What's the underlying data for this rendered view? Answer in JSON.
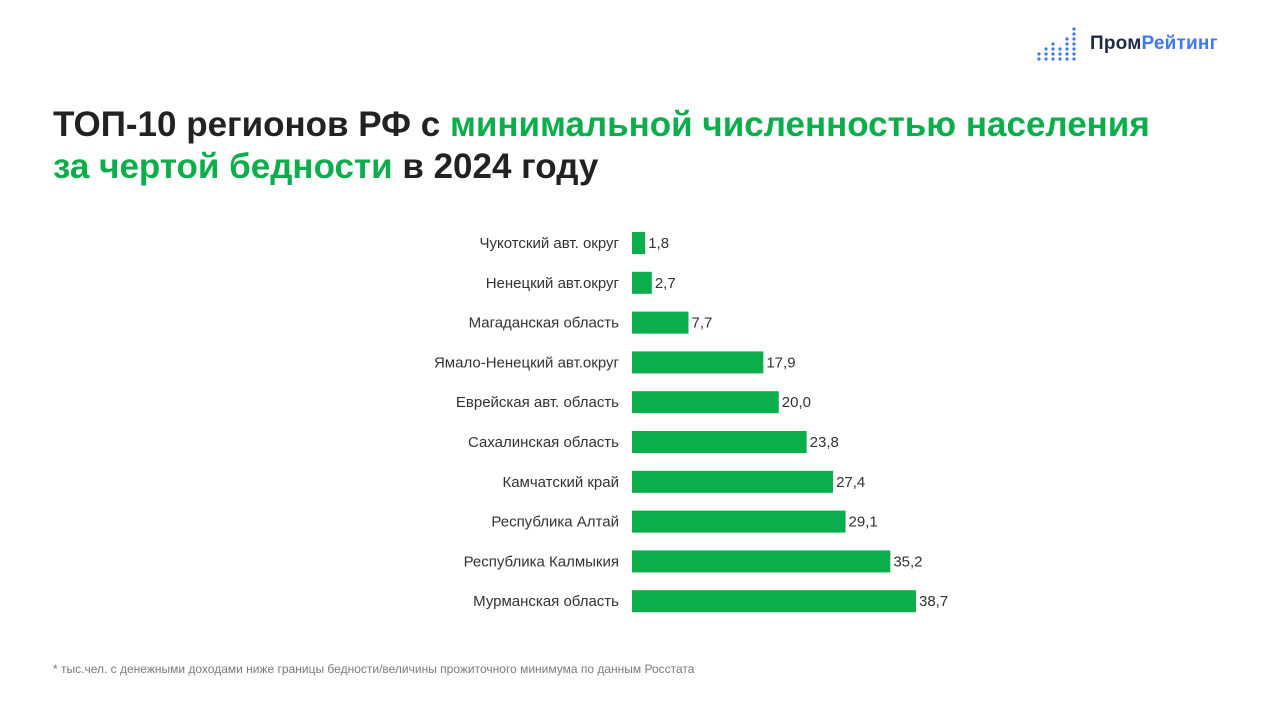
{
  "brand": {
    "name_part1": "Пром",
    "name_part2": "Рейтинг",
    "icon": "bar-dots-logo-icon",
    "color_dark": "#1f2a44",
    "color_blue": "#3f78f0"
  },
  "title": {
    "part1": "ТОП-10 регионов РФ с ",
    "highlight1": "минимальной численностью населения",
    "highlight2": "за чертой бедности",
    "part2": " в 2024 году"
  },
  "colors": {
    "accent": "#0cae4b",
    "text": "#222222",
    "bar": "#0cae4b"
  },
  "chart_data": {
    "type": "bar",
    "orientation": "horizontal",
    "categories": [
      "Чукотский авт. округ",
      "Ненецкий авт.округ",
      "Магаданская область",
      "Ямало-Ненецкий авт.округ",
      "Еврейская авт. область",
      "Сахалинская область",
      "Камчатский край",
      "Республика Алтай",
      "Республика Калмыкия",
      "Мурманская область"
    ],
    "values": [
      1.8,
      2.7,
      7.7,
      17.9,
      20.0,
      23.8,
      27.4,
      29.1,
      35.2,
      38.7
    ],
    "value_labels": [
      "1,8",
      "2,7",
      "7,7",
      "17,9",
      "20,0",
      "23,8",
      "27,4",
      "29,1",
      "35,2",
      "38,7"
    ],
    "xlim": [
      0,
      38.7
    ],
    "grid": false,
    "legend": "none",
    "xlabel": "",
    "ylabel": ""
  },
  "footnote": "* тыс.чел. с денежными доходами ниже границы бедности/величины прожиточного минимума по данным Росстата"
}
